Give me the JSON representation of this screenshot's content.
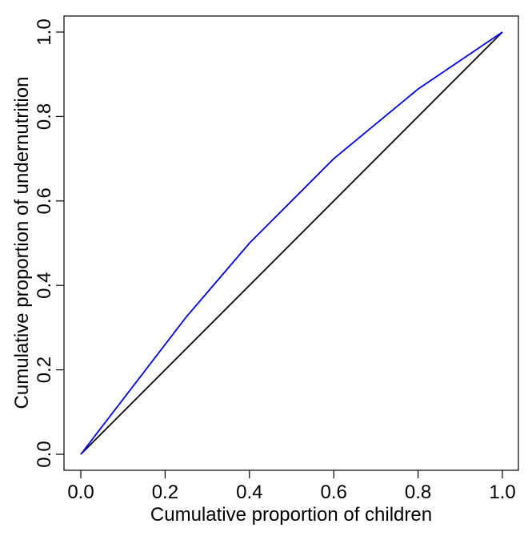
{
  "chart_data": {
    "type": "line",
    "title": "",
    "xlabel": "Cumulative proportion of children",
    "ylabel": "Cumulative proportion of undernutrition",
    "xlim": [
      0,
      1
    ],
    "ylim": [
      0,
      1
    ],
    "xticks": [
      "0.0",
      "0.2",
      "0.4",
      "0.6",
      "0.8",
      "1.0"
    ],
    "yticks": [
      "0.0",
      "0.2",
      "0.4",
      "0.6",
      "0.8",
      "1.0"
    ],
    "grid": false,
    "series": [
      {
        "color": "#0000ff",
        "x": [
          0,
          0.25,
          0.4,
          0.45,
          0.6,
          0.8,
          1.0
        ],
        "y": [
          0,
          0.325,
          0.5,
          0.55,
          0.7,
          0.865,
          1.0
        ]
      },
      {
        "color": "#000000",
        "x": [
          0,
          1
        ],
        "y": [
          0,
          1
        ]
      }
    ]
  }
}
